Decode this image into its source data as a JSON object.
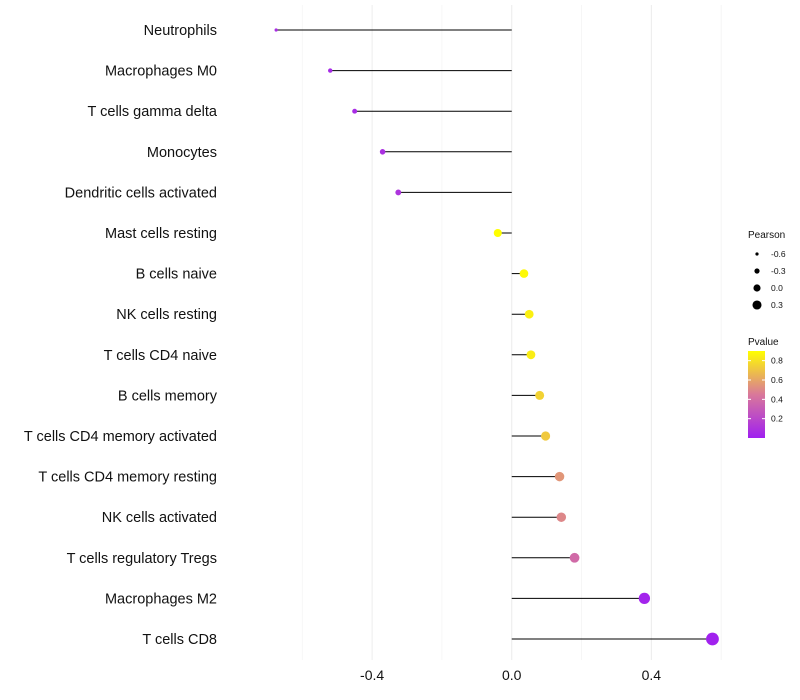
{
  "chart_data": {
    "type": "lollipop",
    "categories": [
      "Neutrophils",
      "Macrophages M0",
      "T cells gamma delta",
      "Monocytes",
      "Dendritic cells activated",
      "Mast cells resting",
      "B cells naive",
      "NK cells resting",
      "T cells CD4 naive",
      "B cells memory",
      "T cells CD4 memory activated",
      "T cells CD4 memory resting",
      "NK cells activated",
      "T cells regulatory  Tregs ",
      "Macrophages M2",
      "T cells CD8"
    ],
    "pearson": [
      -0.675,
      -0.52,
      -0.45,
      -0.37,
      -0.325,
      -0.04,
      0.035,
      0.05,
      0.055,
      0.08,
      0.097,
      0.137,
      0.142,
      0.18,
      0.38,
      0.575
    ],
    "pvalue": [
      0.07,
      0.05,
      0.06,
      0.08,
      0.1,
      0.9,
      0.88,
      0.85,
      0.84,
      0.75,
      0.72,
      0.55,
      0.5,
      0.38,
      0.02,
      0.01
    ],
    "xlim": [
      -0.81,
      0.8
    ],
    "xticks": [
      -0.4,
      0.0,
      0.4
    ],
    "xtick_labels": [
      "-0.4",
      "0.0",
      "0.4"
    ],
    "title": "",
    "xlabel": "",
    "ylabel": "",
    "grid": true,
    "legend_size": {
      "title": "Pearson",
      "values": [
        -0.6,
        -0.3,
        0.0,
        0.3
      ],
      "labels": [
        "-0.6",
        "-0.3",
        "0.0",
        "0.3"
      ]
    },
    "legend_color": {
      "title": "Pvalue",
      "range": [
        0.0,
        0.9
      ],
      "ticks": [
        0.2,
        0.4,
        0.6,
        0.8
      ],
      "tick_labels": [
        "0.2",
        "0.4",
        "0.6",
        "0.8"
      ],
      "low_color": "#a020f0",
      "high_color": "#ffff00"
    },
    "stem_color": "#000000"
  }
}
